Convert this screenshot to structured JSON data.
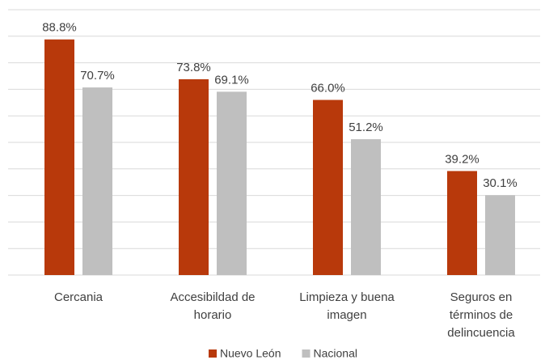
{
  "chart_data": {
    "type": "bar",
    "categories": [
      "Cercania",
      "Accesibildad de horario",
      "Limpieza y buena imagen",
      "Seguros en términos de delincuencia"
    ],
    "series": [
      {
        "name": "Nuevo León",
        "color": "#b8390b",
        "values": [
          88.8,
          73.8,
          66.0,
          39.2
        ],
        "value_labels": [
          "88.8%",
          "73.8%",
          "66.0%",
          "39.2%"
        ]
      },
      {
        "name": "Nacional",
        "color": "#bfbfbf",
        "values": [
          70.7,
          69.1,
          51.2,
          30.1
        ],
        "value_labels": [
          "70.7%",
          "69.1%",
          "51.2%",
          "30.1%"
        ]
      }
    ],
    "ylim": [
      0,
      100
    ],
    "yticks": [
      0,
      10,
      20,
      30,
      40,
      50,
      60,
      70,
      80,
      90,
      100
    ],
    "grid": true,
    "legend": "bottom"
  }
}
